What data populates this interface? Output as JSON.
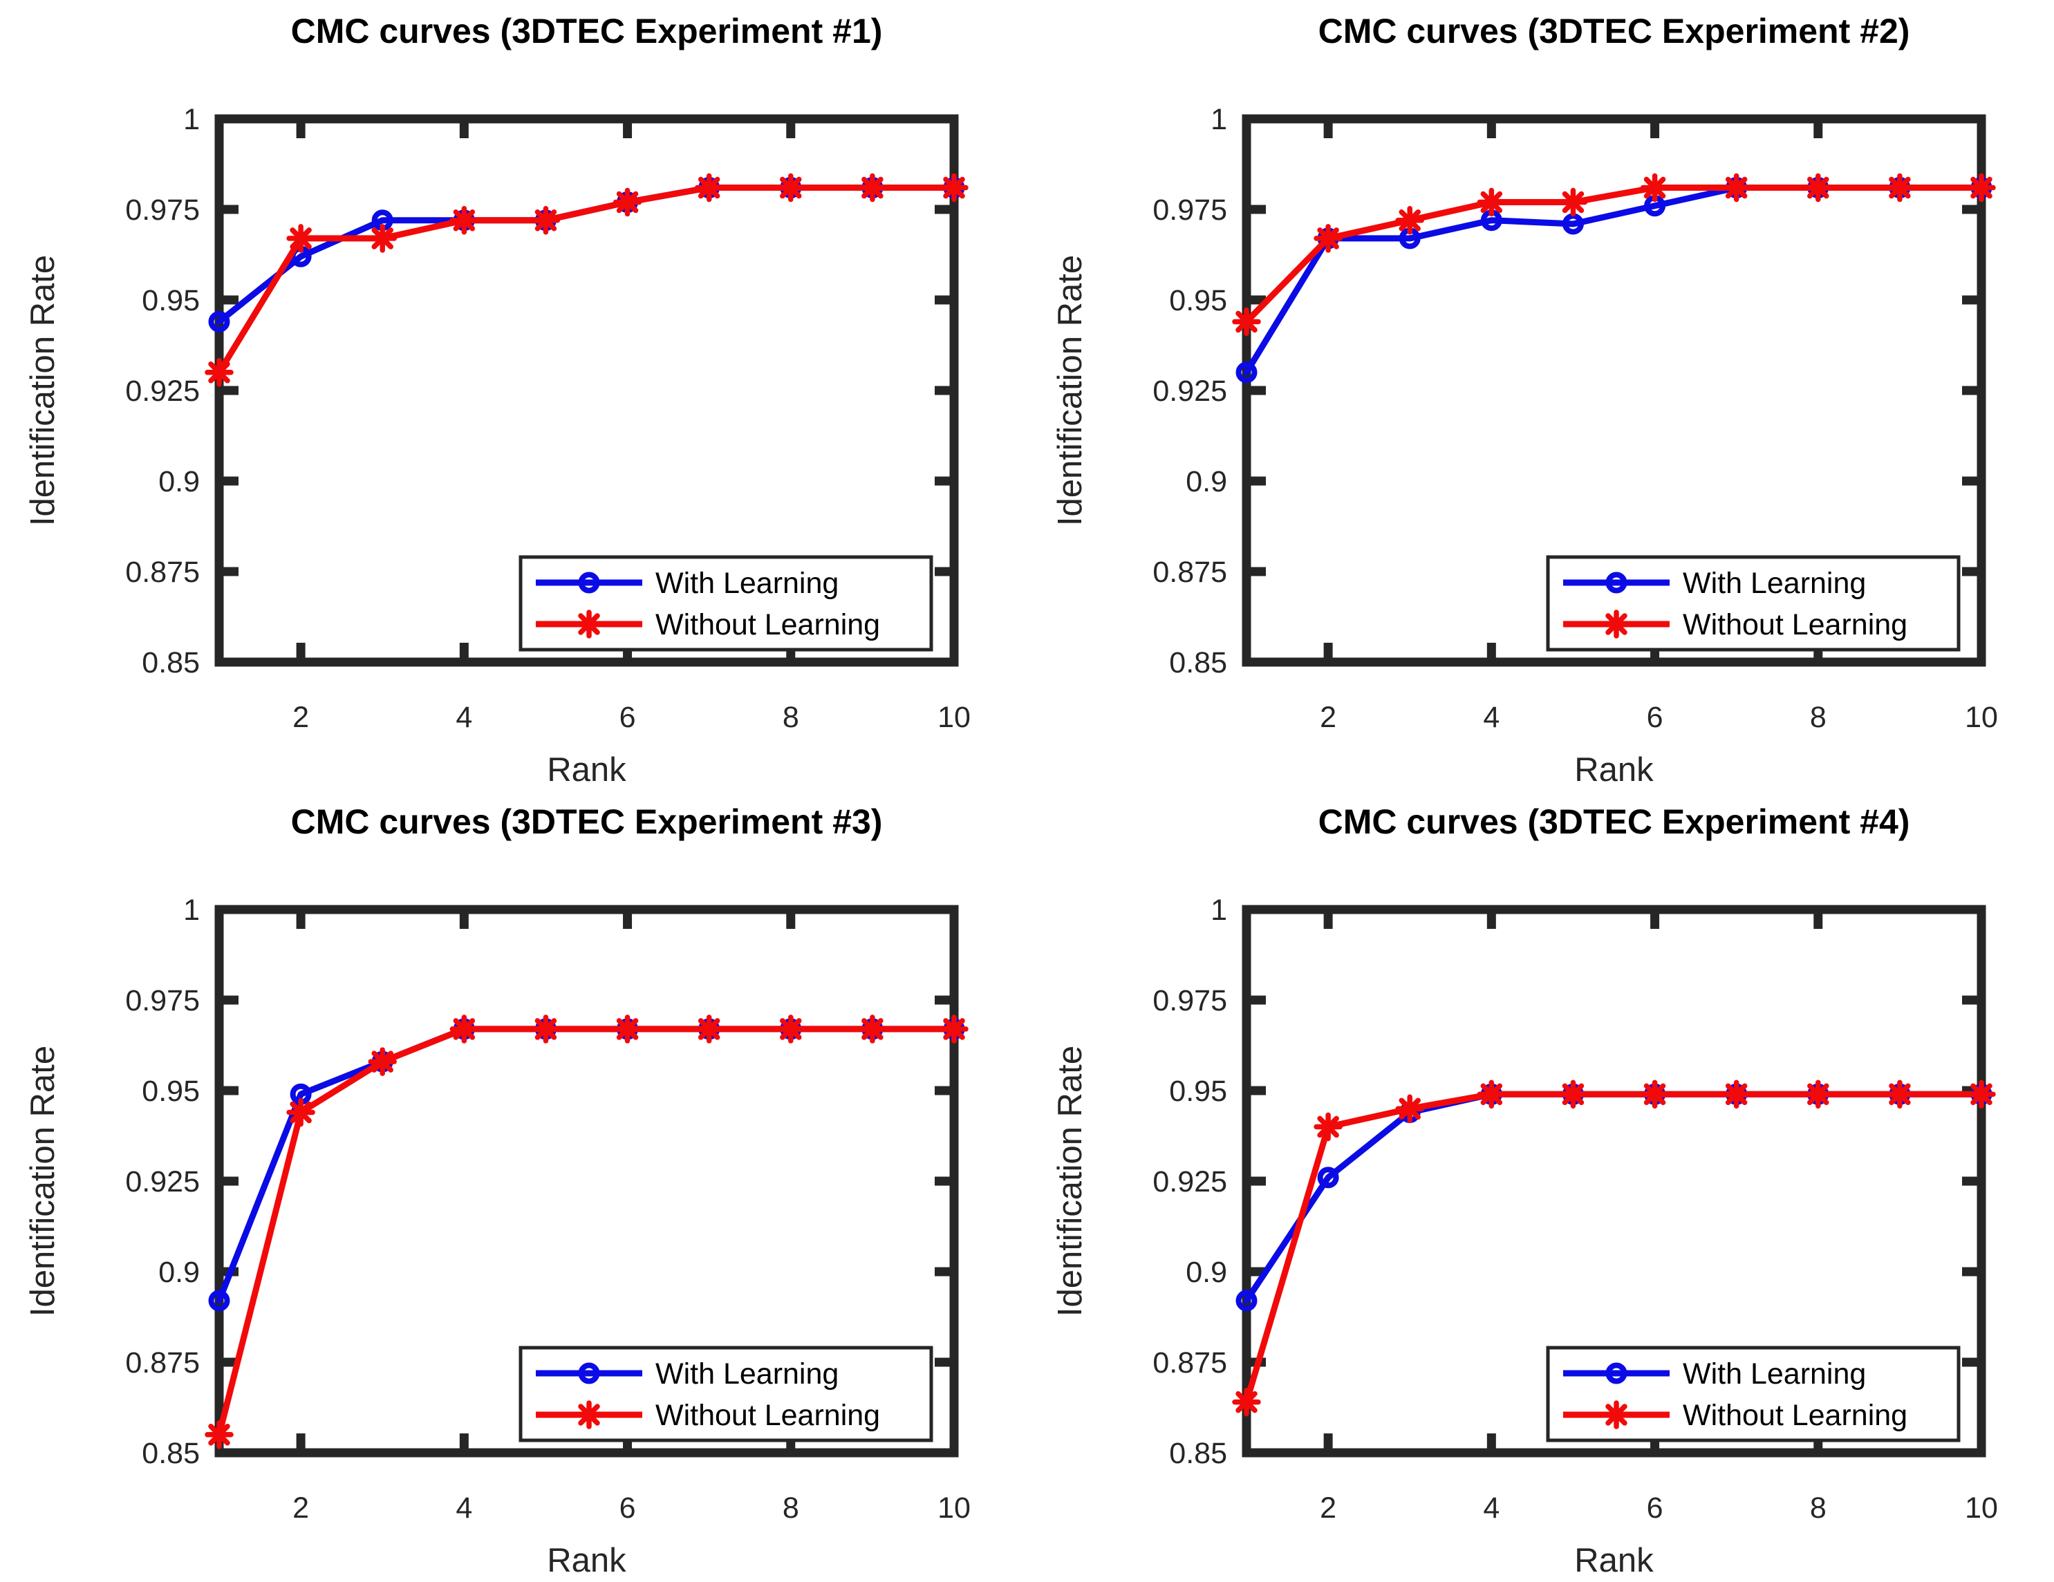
{
  "page": {
    "background": "#ffffff",
    "axis_color": "#262626",
    "title_color": "#000000",
    "legend_text_color": "#000000"
  },
  "legend": {
    "entries": [
      {
        "label": "With Learning",
        "color": "#0B0BE6",
        "marker": "circle"
      },
      {
        "label": "Without Learning",
        "color": "#F20A0A",
        "marker": "asterisk"
      }
    ],
    "position": "bottom-right"
  },
  "chart_data": [
    {
      "type": "line",
      "title": "CMC curves (3DTEC Experiment #1)",
      "xlabel": "Rank",
      "ylabel": "Identification Rate",
      "xlim": [
        1,
        10
      ],
      "ylim": [
        0.85,
        1.0
      ],
      "xticks": [
        2,
        4,
        6,
        8,
        10
      ],
      "yticks": [
        1,
        0.975,
        0.95,
        0.925,
        0.9,
        0.875,
        0.85
      ],
      "ytick_labels": [
        "1",
        "0.975",
        "0.95",
        "0.925",
        "0.9",
        "0.875",
        "0.85"
      ],
      "grid": false,
      "legend_position": "bottom-right",
      "x": [
        1,
        2,
        3,
        4,
        5,
        6,
        7,
        8,
        9,
        10
      ],
      "series": [
        {
          "name": "With Learning",
          "color": "#0B0BE6",
          "marker": "circle",
          "values": [
            0.944,
            0.962,
            0.972,
            0.972,
            0.972,
            0.977,
            0.981,
            0.981,
            0.981,
            0.981
          ]
        },
        {
          "name": "Without Learning",
          "color": "#F20A0A",
          "marker": "asterisk",
          "values": [
            0.93,
            0.967,
            0.967,
            0.972,
            0.972,
            0.977,
            0.981,
            0.981,
            0.981,
            0.981
          ]
        }
      ]
    },
    {
      "type": "line",
      "title": "CMC curves (3DTEC Experiment #2)",
      "xlabel": "Rank",
      "ylabel": "Identification Rate",
      "xlim": [
        1,
        10
      ],
      "ylim": [
        0.85,
        1.0
      ],
      "xticks": [
        2,
        4,
        6,
        8,
        10
      ],
      "yticks": [
        1,
        0.975,
        0.95,
        0.925,
        0.9,
        0.875,
        0.85
      ],
      "ytick_labels": [
        "1",
        "0.975",
        "0.95",
        "0.925",
        "0.9",
        "0.875",
        "0.85"
      ],
      "grid": false,
      "legend_position": "bottom-right",
      "x": [
        1,
        2,
        3,
        4,
        5,
        6,
        7,
        8,
        9,
        10
      ],
      "series": [
        {
          "name": "With Learning",
          "color": "#0B0BE6",
          "marker": "circle",
          "values": [
            0.93,
            0.967,
            0.967,
            0.972,
            0.971,
            0.976,
            0.981,
            0.981,
            0.981,
            0.981
          ]
        },
        {
          "name": "Without Learning",
          "color": "#F20A0A",
          "marker": "asterisk",
          "values": [
            0.944,
            0.967,
            0.972,
            0.977,
            0.977,
            0.981,
            0.981,
            0.981,
            0.981,
            0.981
          ]
        }
      ]
    },
    {
      "type": "line",
      "title": "CMC curves (3DTEC Experiment #3)",
      "xlabel": "Rank",
      "ylabel": "Identification Rate",
      "xlim": [
        1,
        10
      ],
      "ylim": [
        0.85,
        1.0
      ],
      "xticks": [
        2,
        4,
        6,
        8,
        10
      ],
      "yticks": [
        1,
        0.975,
        0.95,
        0.925,
        0.9,
        0.875,
        0.85
      ],
      "ytick_labels": [
        "1",
        "0.975",
        "0.95",
        "0.925",
        "0.9",
        "0.875",
        "0.85"
      ],
      "grid": false,
      "legend_position": "bottom-right",
      "x": [
        1,
        2,
        3,
        4,
        5,
        6,
        7,
        8,
        9,
        10
      ],
      "series": [
        {
          "name": "With Learning",
          "color": "#0B0BE6",
          "marker": "circle",
          "values": [
            0.892,
            0.949,
            0.958,
            0.967,
            0.967,
            0.967,
            0.967,
            0.967,
            0.967,
            0.967
          ]
        },
        {
          "name": "Without Learning",
          "color": "#F20A0A",
          "marker": "asterisk",
          "values": [
            0.855,
            0.944,
            0.958,
            0.967,
            0.967,
            0.967,
            0.967,
            0.967,
            0.967,
            0.967
          ]
        }
      ]
    },
    {
      "type": "line",
      "title": "CMC curves (3DTEC Experiment #4)",
      "xlabel": "Rank",
      "ylabel": "Identification Rate",
      "xlim": [
        1,
        10
      ],
      "ylim": [
        0.85,
        1.0
      ],
      "xticks": [
        2,
        4,
        6,
        8,
        10
      ],
      "yticks": [
        1,
        0.975,
        0.95,
        0.925,
        0.9,
        0.875,
        0.85
      ],
      "ytick_labels": [
        "1",
        "0.975",
        "0.95",
        "0.925",
        "0.9",
        "0.875",
        "0.85"
      ],
      "grid": false,
      "legend_position": "bottom-right",
      "x": [
        1,
        2,
        3,
        4,
        5,
        6,
        7,
        8,
        9,
        10
      ],
      "series": [
        {
          "name": "With Learning",
          "color": "#0B0BE6",
          "marker": "circle",
          "values": [
            0.892,
            0.926,
            0.944,
            0.949,
            0.949,
            0.949,
            0.949,
            0.949,
            0.949,
            0.949
          ]
        },
        {
          "name": "Without Learning",
          "color": "#F20A0A",
          "marker": "asterisk",
          "values": [
            0.864,
            0.94,
            0.945,
            0.949,
            0.949,
            0.949,
            0.949,
            0.949,
            0.949,
            0.949
          ]
        }
      ]
    }
  ]
}
